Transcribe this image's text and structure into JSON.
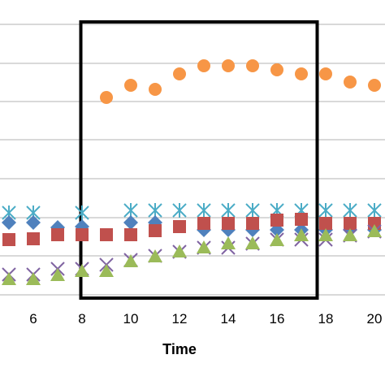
{
  "chart_data": {
    "type": "scatter",
    "title": "",
    "xlabel": "Time",
    "ylabel": "",
    "xlim": [
      4.6,
      20.4
    ],
    "x_ticks": [
      6,
      8,
      10,
      12,
      14,
      16,
      18,
      20
    ],
    "grid": "horizontal",
    "legend": "none",
    "highlight_box": {
      "x_from": 7.95,
      "x_to": 17.65,
      "color": "#000000"
    },
    "series": [
      {
        "marker": "circle",
        "color": "#F79646",
        "points": [
          [
            9,
            120
          ],
          [
            10,
            105
          ],
          [
            11,
            110
          ],
          [
            12,
            91
          ],
          [
            13,
            81
          ],
          [
            14,
            81
          ],
          [
            15,
            81
          ],
          [
            16,
            86
          ],
          [
            17,
            91
          ],
          [
            18,
            91
          ],
          [
            19,
            101
          ],
          [
            20,
            105
          ]
        ]
      },
      {
        "marker": "asterisk",
        "color": "#4BACC6",
        "points": [
          [
            5,
            262
          ],
          [
            6,
            262
          ],
          [
            8,
            262
          ],
          [
            10,
            259
          ],
          [
            11,
            259
          ],
          [
            12,
            259
          ],
          [
            13,
            259
          ],
          [
            14,
            259
          ],
          [
            15,
            259
          ],
          [
            16,
            259
          ],
          [
            17,
            259
          ],
          [
            18,
            259
          ],
          [
            19,
            259
          ],
          [
            20,
            259
          ]
        ]
      },
      {
        "marker": "diamond",
        "color": "#4F81BD",
        "points": [
          [
            5,
            274
          ],
          [
            6,
            274
          ],
          [
            7,
            280
          ],
          [
            8,
            279
          ],
          [
            10,
            274
          ],
          [
            11,
            274
          ],
          [
            13,
            283
          ],
          [
            14,
            283
          ],
          [
            15,
            283
          ],
          [
            16,
            283
          ],
          [
            17,
            283
          ],
          [
            18,
            283
          ],
          [
            19,
            283
          ],
          [
            20,
            283
          ]
        ]
      },
      {
        "marker": "square",
        "color": "#C0504D",
        "points": [
          [
            5,
            295
          ],
          [
            6,
            294
          ],
          [
            7,
            289
          ],
          [
            8,
            289
          ],
          [
            9,
            289
          ],
          [
            10,
            289
          ],
          [
            11,
            284
          ],
          [
            12,
            279
          ],
          [
            13,
            275
          ],
          [
            14,
            275
          ],
          [
            15,
            275
          ],
          [
            16,
            271
          ],
          [
            17,
            270
          ],
          [
            18,
            275
          ],
          [
            19,
            275
          ],
          [
            20,
            275
          ]
        ]
      },
      {
        "marker": "x",
        "color": "#8064A2",
        "points": [
          [
            5,
            338
          ],
          [
            6,
            338
          ],
          [
            7,
            331
          ],
          [
            8,
            331
          ],
          [
            9,
            326
          ],
          [
            10,
            320
          ],
          [
            11,
            315
          ],
          [
            12,
            310
          ],
          [
            13,
            305
          ],
          [
            14,
            305
          ],
          [
            15,
            300
          ],
          [
            16,
            295
          ],
          [
            17,
            295
          ],
          [
            18,
            295
          ],
          [
            19,
            290
          ],
          [
            20,
            285
          ]
        ]
      },
      {
        "marker": "triangle",
        "color": "#9BBB59",
        "points": [
          [
            5,
            344
          ],
          [
            6,
            344
          ],
          [
            7,
            339
          ],
          [
            8,
            334
          ],
          [
            9,
            334
          ],
          [
            10,
            322
          ],
          [
            11,
            316
          ],
          [
            12,
            310
          ],
          [
            13,
            305
          ],
          [
            14,
            300
          ],
          [
            15,
            300
          ],
          [
            16,
            296
          ],
          [
            17,
            290
          ],
          [
            18,
            290
          ],
          [
            19,
            290
          ],
          [
            20,
            285
          ]
        ]
      }
    ]
  }
}
